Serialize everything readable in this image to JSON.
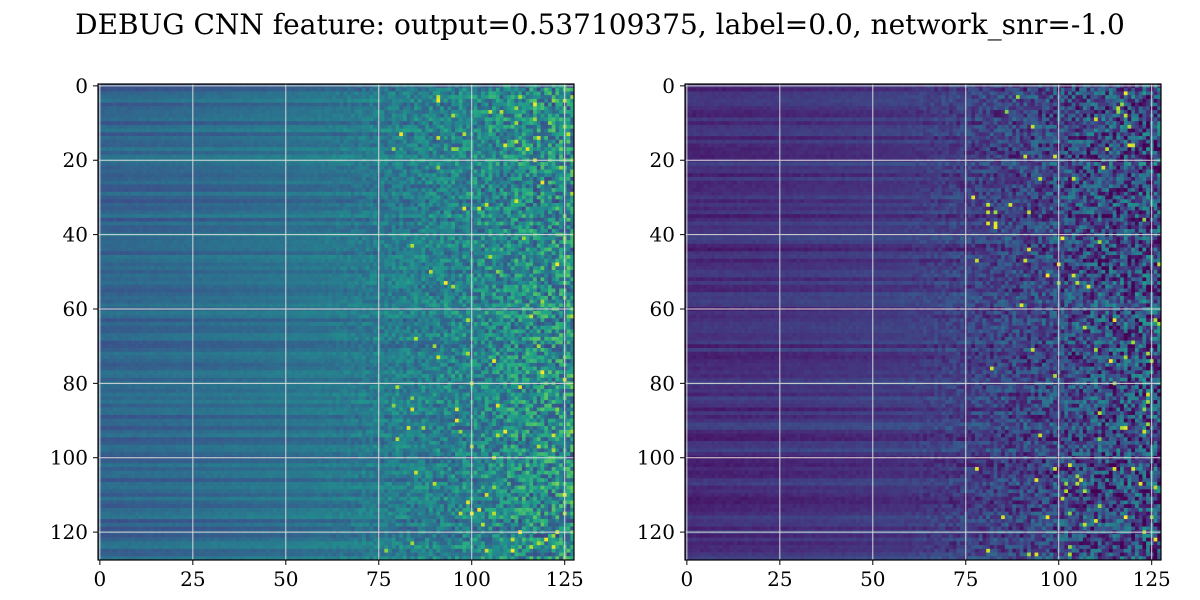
{
  "figure": {
    "title": "DEBUG CNN feature: output=0.537109375, label=0.0, network_snr=-1.0"
  },
  "chart_data": [
    {
      "type": "heatmap",
      "panel": "left",
      "title": "",
      "xlabel": "",
      "ylabel": "",
      "grid": true,
      "x_range": [
        0,
        127
      ],
      "y_range": [
        0,
        127
      ],
      "y_inverted": true,
      "colormap": "viridis",
      "x_ticks": [
        "0",
        "25",
        "50",
        "75",
        "100",
        "125"
      ],
      "y_ticks": [
        "0",
        "20",
        "40",
        "60",
        "80",
        "100",
        "120"
      ],
      "description_values": {
        "base_level_low_x": 0.32,
        "base_level_high_x": 0.5,
        "noise_level_high_x": 0.16
      }
    },
    {
      "type": "heatmap",
      "panel": "right",
      "title": "",
      "xlabel": "",
      "ylabel": "",
      "grid": true,
      "x_range": [
        0,
        127
      ],
      "y_range": [
        0,
        127
      ],
      "y_inverted": true,
      "colormap": "viridis",
      "x_ticks": [
        "0",
        "25",
        "50",
        "75",
        "100",
        "125"
      ],
      "y_ticks": [
        "0",
        "20",
        "40",
        "60",
        "80",
        "100",
        "120"
      ],
      "description_values": {
        "base_level_low_x": 0.13,
        "base_level_high_x": 0.25,
        "noise_level_high_x": 0.18
      }
    }
  ],
  "colors": {
    "grid": "#d9d9d9",
    "axes": "#000000"
  }
}
